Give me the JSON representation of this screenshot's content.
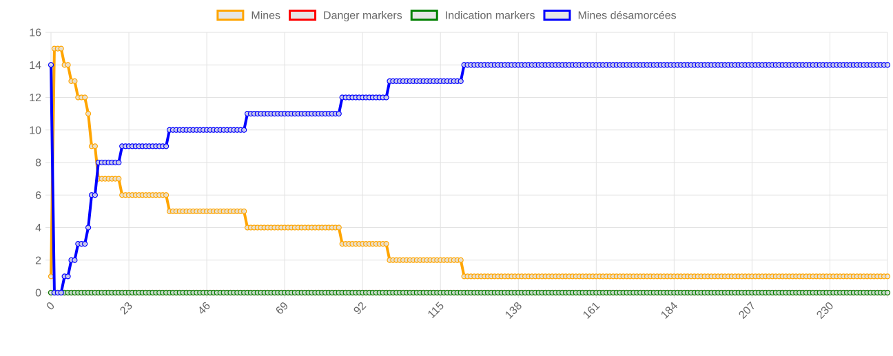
{
  "chart_data": {
    "type": "line",
    "x_start": 0,
    "x_end": 247,
    "x_step": 1,
    "x_tick_labels": [
      "0",
      "23",
      "46",
      "69",
      "92",
      "115",
      "138",
      "161",
      "184",
      "207",
      "230"
    ],
    "ylim": [
      0,
      16
    ],
    "y_ticks": [
      0,
      2,
      4,
      6,
      8,
      10,
      12,
      14,
      16
    ],
    "grid": true,
    "legend_position": "top",
    "series": [
      {
        "name": "Mines",
        "color": "#FFA500",
        "breakpoints": [
          [
            0,
            1
          ],
          [
            1,
            15
          ],
          [
            4,
            14
          ],
          [
            6,
            13
          ],
          [
            8,
            12
          ],
          [
            11,
            11
          ],
          [
            12,
            9
          ],
          [
            14,
            7
          ],
          [
            21,
            6
          ],
          [
            35,
            5
          ],
          [
            58,
            4
          ],
          [
            86,
            3
          ],
          [
            100,
            2
          ],
          [
            122,
            1
          ]
        ]
      },
      {
        "name": "Danger markers",
        "color": "#FF0000",
        "breakpoints": [
          [
            0,
            0
          ]
        ]
      },
      {
        "name": "Indication markers",
        "color": "#008000",
        "breakpoints": [
          [
            0,
            0
          ]
        ]
      },
      {
        "name": "Mines désamorcées",
        "color": "#0000FF",
        "breakpoints": [
          [
            0,
            14
          ],
          [
            1,
            0
          ],
          [
            4,
            1
          ],
          [
            6,
            2
          ],
          [
            8,
            3
          ],
          [
            11,
            4
          ],
          [
            12,
            6
          ],
          [
            14,
            8
          ],
          [
            21,
            9
          ],
          [
            35,
            10
          ],
          [
            58,
            11
          ],
          [
            86,
            12
          ],
          [
            100,
            13
          ],
          [
            122,
            14
          ]
        ]
      }
    ]
  }
}
